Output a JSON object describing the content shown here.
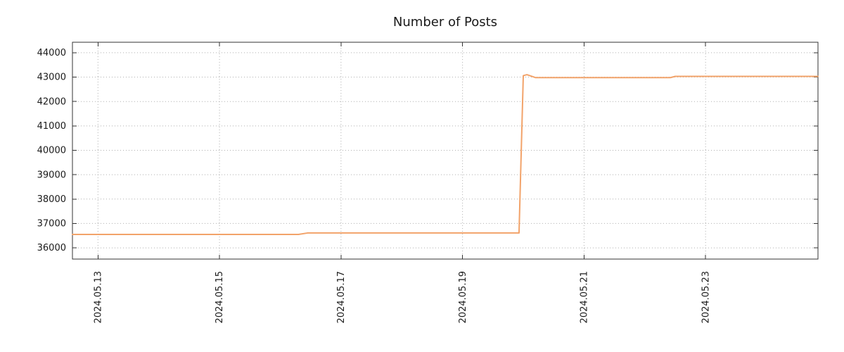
{
  "chart_data": {
    "type": "line",
    "title": "Number of Posts",
    "xlabel": "",
    "ylabel": "",
    "x_unit": "date (day of 2024.05)",
    "xlim": [
      12.58,
      24.85
    ],
    "ylim": [
      35540,
      44430
    ],
    "grid": "dotted",
    "legend": "none",
    "x_ticks": [
      {
        "v": 13,
        "label": "2024.05.13"
      },
      {
        "v": 15,
        "label": "2024.05.15"
      },
      {
        "v": 17,
        "label": "2024.05.17"
      },
      {
        "v": 19,
        "label": "2024.05.19"
      },
      {
        "v": 21,
        "label": "2024.05.21"
      },
      {
        "v": 23,
        "label": "2024.05.23"
      }
    ],
    "y_ticks": [
      36000,
      37000,
      38000,
      39000,
      40000,
      41000,
      42000,
      43000,
      44000
    ],
    "series": [
      {
        "name": "Number of Posts",
        "color": "#f2a36a",
        "points": [
          [
            12.58,
            36550
          ],
          [
            16.3,
            36550
          ],
          [
            16.45,
            36610
          ],
          [
            19.93,
            36610
          ],
          [
            20.0,
            43060
          ],
          [
            20.06,
            43100
          ],
          [
            20.12,
            43050
          ],
          [
            20.2,
            42980
          ],
          [
            22.42,
            42980
          ],
          [
            22.5,
            43030
          ],
          [
            24.85,
            43030
          ]
        ]
      }
    ],
    "colors": {
      "line": "#f2a36a",
      "grid": "#b0b0b0",
      "border": "#333333",
      "text": "#1a1a1a",
      "background": "#ffffff"
    }
  }
}
